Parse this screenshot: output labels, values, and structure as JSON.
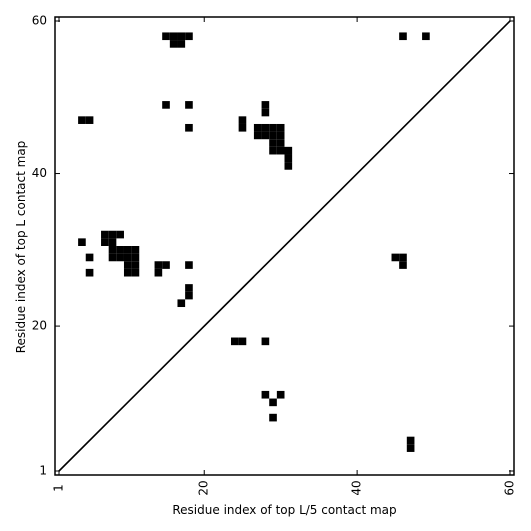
{
  "chart_data": {
    "type": "heatmap",
    "xlabel": "Residue index of top L/5 contact map",
    "ylabel": "Residue index of top L contact map",
    "xlim": [
      1,
      60
    ],
    "ylim": [
      1,
      60
    ],
    "x_ticks": [
      {
        "value": 1,
        "label": "1"
      },
      {
        "value": 20,
        "label": "20"
      },
      {
        "value": 40,
        "label": "40"
      },
      {
        "value": 60,
        "label": "60"
      }
    ],
    "y_ticks": [
      {
        "value": 1,
        "label": "1"
      },
      {
        "value": 20,
        "label": "20"
      },
      {
        "value": 40,
        "label": "40"
      },
      {
        "value": 60,
        "label": "60"
      }
    ],
    "diagonal": true,
    "cell_color": "#000000",
    "background": "#ffffff",
    "contacts": [
      [
        15,
        58
      ],
      [
        16,
        58
      ],
      [
        17,
        58
      ],
      [
        18,
        58
      ],
      [
        16,
        57
      ],
      [
        17,
        57
      ],
      [
        46,
        58
      ],
      [
        49,
        58
      ],
      [
        15,
        49
      ],
      [
        18,
        49
      ],
      [
        28,
        49
      ],
      [
        28,
        48
      ],
      [
        4,
        47
      ],
      [
        5,
        47
      ],
      [
        25,
        47
      ],
      [
        25,
        46
      ],
      [
        18,
        46
      ],
      [
        27,
        46
      ],
      [
        28,
        46
      ],
      [
        29,
        46
      ],
      [
        30,
        46
      ],
      [
        27,
        45
      ],
      [
        28,
        45
      ],
      [
        29,
        45
      ],
      [
        30,
        45
      ],
      [
        29,
        44
      ],
      [
        30,
        44
      ],
      [
        29,
        43
      ],
      [
        30,
        43
      ],
      [
        31,
        43
      ],
      [
        31,
        42
      ],
      [
        31,
        41
      ],
      [
        7,
        32
      ],
      [
        8,
        32
      ],
      [
        9,
        32
      ],
      [
        4,
        31
      ],
      [
        7,
        31
      ],
      [
        8,
        31
      ],
      [
        8,
        30
      ],
      [
        9,
        30
      ],
      [
        10,
        30
      ],
      [
        11,
        30
      ],
      [
        5,
        29
      ],
      [
        8,
        29
      ],
      [
        9,
        29
      ],
      [
        10,
        29
      ],
      [
        11,
        29
      ],
      [
        45,
        29
      ],
      [
        46,
        29
      ],
      [
        14,
        28
      ],
      [
        15,
        28
      ],
      [
        18,
        28
      ],
      [
        10,
        28
      ],
      [
        11,
        28
      ],
      [
        46,
        28
      ],
      [
        5,
        27
      ],
      [
        10,
        27
      ],
      [
        11,
        27
      ],
      [
        14,
        27
      ],
      [
        18,
        25
      ],
      [
        18,
        24
      ],
      [
        17,
        23
      ],
      [
        24,
        18
      ],
      [
        25,
        18
      ],
      [
        28,
        18
      ],
      [
        28,
        11
      ],
      [
        30,
        11
      ],
      [
        29,
        10
      ],
      [
        29,
        8
      ],
      [
        47,
        5
      ],
      [
        47,
        4
      ]
    ]
  }
}
